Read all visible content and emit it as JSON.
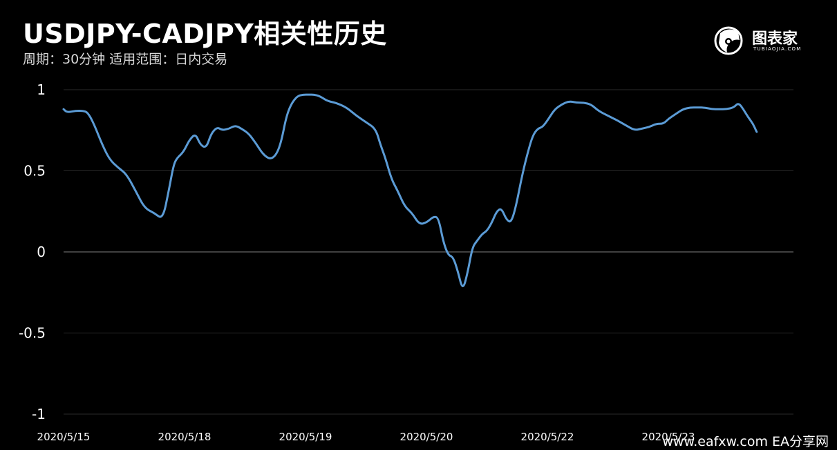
{
  "header": {
    "title": "USDJPY-CADJPY相关性历史",
    "subtitle": "周期：30分钟  适用范围：日内交易"
  },
  "brand": {
    "name": "图表家",
    "sub": "TUBIAOJIA.COM",
    "icon": "tubiaojia-logo-icon"
  },
  "watermark": {
    "text": "www.eafxw.com  EA分享网"
  },
  "colors": {
    "background": "#000000",
    "line": "#5b9bd5",
    "grid": "#2a2a2a",
    "zero_line": "#555555",
    "text": "#ffffff"
  },
  "chart_data": {
    "type": "line",
    "title": "USDJPY-CADJPY相关性历史",
    "subtitle": "周期：30分钟  适用范围：日内交易",
    "xlabel": "",
    "ylabel": "",
    "ylim": [
      -1,
      1
    ],
    "y_ticks": [
      1,
      0.5,
      0,
      -0.5,
      -1
    ],
    "y_tick_labels": [
      "1",
      "0.5",
      "0",
      "-0.5",
      "-1"
    ],
    "x_tick_labels": [
      "2020/5/15",
      "2020/5/18",
      "2020/5/19",
      "2020/5/20",
      "2020/5/22",
      "2020/5/23"
    ],
    "x_tick_positions": [
      0,
      1,
      2,
      3,
      4,
      5
    ],
    "grid": true,
    "legend": "none",
    "series": [
      {
        "x": [
          0,
          0.03,
          0.1,
          0.16,
          0.2,
          0.25,
          0.32,
          0.38,
          0.45,
          0.52,
          0.6,
          0.67,
          0.75,
          0.82,
          0.87,
          0.91,
          0.94,
          0.97,
          1.0,
          1.04,
          1.09,
          1.13,
          1.18,
          1.22,
          1.27,
          1.31,
          1.37,
          1.42,
          1.47,
          1.53,
          1.59,
          1.65,
          1.71,
          1.76,
          1.8,
          1.84,
          1.88,
          1.93,
          1.98,
          2.03,
          2.07,
          2.12,
          2.18,
          2.25,
          2.34,
          2.42,
          2.5,
          2.58,
          2.62,
          2.66,
          2.71,
          2.76,
          2.82,
          2.88,
          2.94,
          3.0,
          3.06,
          3.1,
          3.14,
          3.18,
          3.22,
          3.26,
          3.3,
          3.34,
          3.38,
          3.42,
          3.46,
          3.5,
          3.54,
          3.58,
          3.62,
          3.66,
          3.7,
          3.74,
          3.79,
          3.84,
          3.88,
          3.92,
          3.96,
          4.0,
          4.06,
          4.12,
          4.18,
          4.24,
          4.3,
          4.36,
          4.42,
          4.5,
          4.58,
          4.65,
          4.72,
          4.78,
          4.84,
          4.9,
          4.96,
          5.0,
          5.06,
          5.12,
          5.18,
          5.24,
          5.3,
          5.36,
          5.42,
          5.48,
          5.54,
          5.58,
          5.62,
          5.66,
          5.7,
          5.73
        ],
        "values": [
          0.88,
          0.86,
          0.87,
          0.87,
          0.86,
          0.79,
          0.66,
          0.57,
          0.52,
          0.48,
          0.37,
          0.27,
          0.24,
          0.2,
          0.38,
          0.54,
          0.58,
          0.6,
          0.63,
          0.69,
          0.73,
          0.66,
          0.64,
          0.73,
          0.77,
          0.75,
          0.76,
          0.78,
          0.76,
          0.73,
          0.67,
          0.6,
          0.57,
          0.6,
          0.68,
          0.83,
          0.91,
          0.96,
          0.97,
          0.97,
          0.97,
          0.96,
          0.93,
          0.92,
          0.89,
          0.84,
          0.8,
          0.76,
          0.66,
          0.58,
          0.45,
          0.38,
          0.28,
          0.24,
          0.17,
          0.18,
          0.22,
          0.21,
          0.06,
          -0.02,
          -0.03,
          -0.12,
          -0.24,
          -0.13,
          0.03,
          0.07,
          0.11,
          0.13,
          0.18,
          0.25,
          0.27,
          0.2,
          0.18,
          0.28,
          0.47,
          0.62,
          0.72,
          0.76,
          0.77,
          0.81,
          0.88,
          0.91,
          0.93,
          0.92,
          0.92,
          0.91,
          0.87,
          0.84,
          0.81,
          0.78,
          0.75,
          0.76,
          0.77,
          0.79,
          0.79,
          0.82,
          0.85,
          0.88,
          0.89,
          0.89,
          0.89,
          0.88,
          0.88,
          0.88,
          0.89,
          0.92,
          0.88,
          0.83,
          0.79,
          0.74
        ]
      }
    ]
  }
}
